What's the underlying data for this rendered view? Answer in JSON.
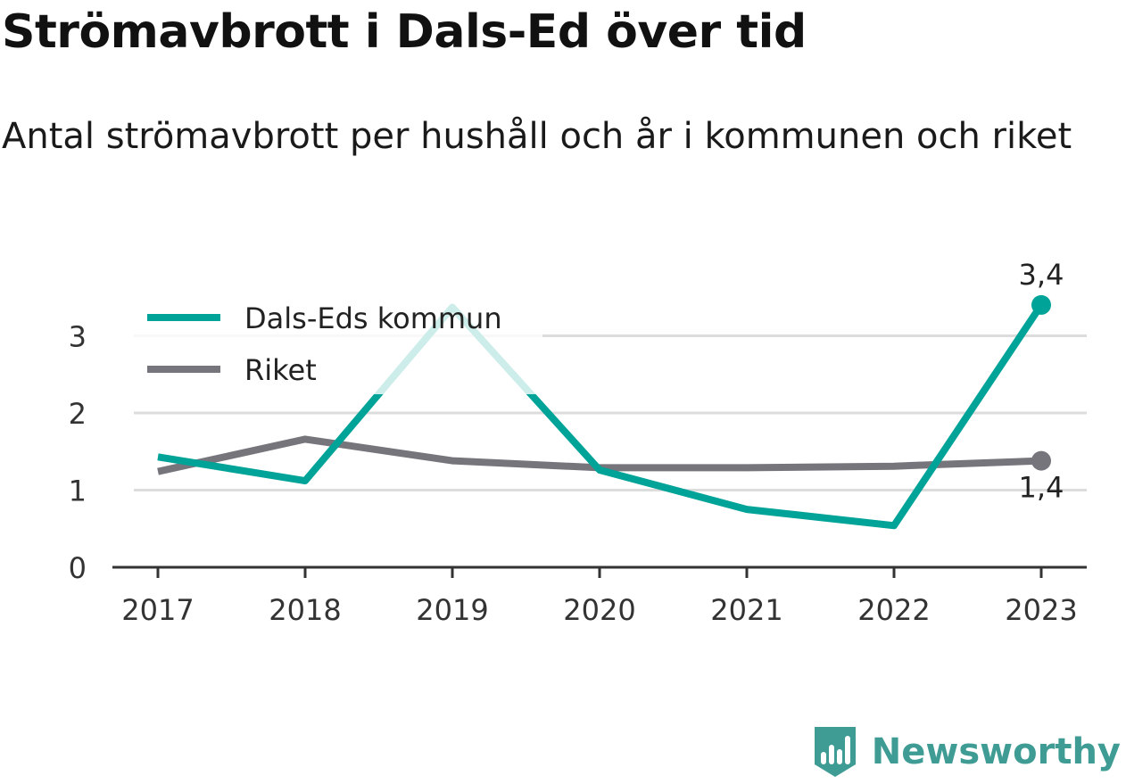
{
  "header": {
    "title": "Strömavbrott i Dals-Ed över tid",
    "subtitle": "Antal strömavbrott per hushåll och år i kommunen och riket"
  },
  "chart_data": {
    "type": "line",
    "x": [
      "2017",
      "2018",
      "2019",
      "2020",
      "2021",
      "2022",
      "2023"
    ],
    "series": [
      {
        "name": "Dals-Eds kommun",
        "color": "#00a398",
        "values": [
          1.43,
          1.12,
          3.37,
          1.26,
          0.75,
          0.54,
          3.4
        ],
        "end_label": "3,4"
      },
      {
        "name": "Riket",
        "color": "#76757c",
        "values": [
          1.24,
          1.66,
          1.38,
          1.29,
          1.29,
          1.31,
          1.38
        ],
        "end_label": "1,4"
      }
    ],
    "y_ticks": [
      0,
      1,
      2,
      3
    ],
    "ylim": [
      0,
      3.7
    ],
    "grid": true,
    "legend_position": "top-left",
    "xlabel": "",
    "ylabel": ""
  },
  "brand": {
    "name": "Newsworthy",
    "icon": "newsworthy-logo-icon",
    "color": "#3f9c95"
  }
}
